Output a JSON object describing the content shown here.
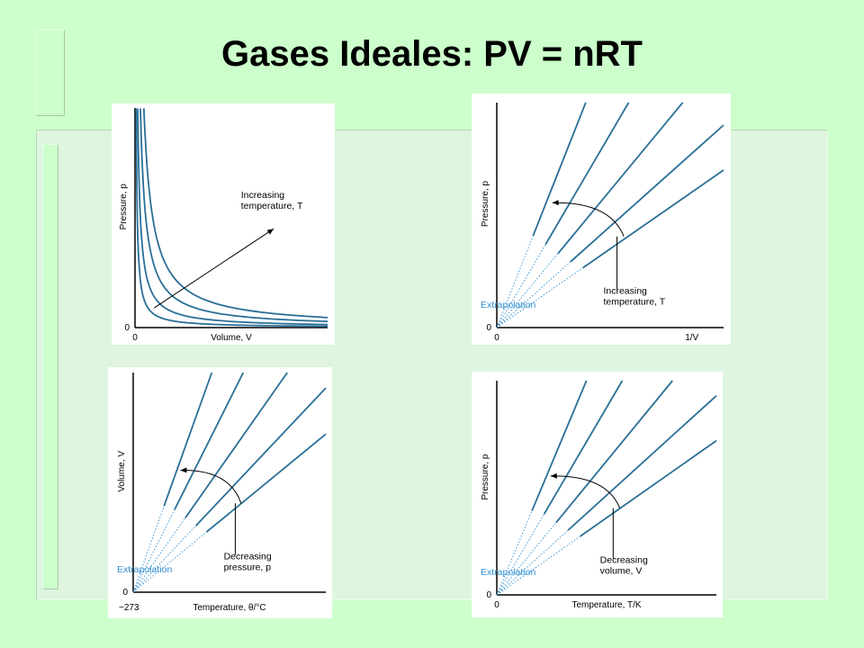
{
  "title": "Gases Ideales: PV = nRT",
  "colors": {
    "background": "#ccffcc",
    "line": "#2a6f97",
    "extrapolation": "#2f8fd0",
    "text": "#000000"
  },
  "chart_data": [
    {
      "type": "line",
      "xlabel": "Volume, V",
      "ylabel": "Pressure, p",
      "x_tick_labels": [
        "0"
      ],
      "y_tick_labels": [
        "0"
      ],
      "annotation": [
        "Increasing",
        "temperature, T"
      ],
      "series": [
        {
          "curve": "isotherm",
          "k": 0.6
        },
        {
          "curve": "isotherm",
          "k": 1.4
        },
        {
          "curve": "isotherm",
          "k": 2.8
        },
        {
          "curve": "isotherm",
          "k": 4.6
        }
      ],
      "xlim": [
        0,
        10
      ],
      "ylim": [
        0,
        10
      ]
    },
    {
      "type": "line",
      "xlabel": "1/V",
      "ylabel": "Pressure, p",
      "x_tick_labels": [
        "0"
      ],
      "y_tick_labels": [
        "0"
      ],
      "annotation": [
        "Increasing",
        "temperature, T"
      ],
      "extrapolation_label": "Extrapolation",
      "series": [
        {
          "curve": "linear",
          "slope": 2.55
        },
        {
          "curve": "linear",
          "slope": 1.72
        },
        {
          "curve": "linear",
          "slope": 1.22
        },
        {
          "curve": "linear",
          "slope": 0.9
        },
        {
          "curve": "linear",
          "slope": 0.7
        }
      ],
      "xlim": [
        0,
        10
      ],
      "ylim": [
        0,
        10
      ]
    },
    {
      "type": "line",
      "xlabel": "Temperature, θ/°C",
      "ylabel": "Volume, V",
      "x_tick_labels": [
        "−273"
      ],
      "y_tick_labels": [
        "0"
      ],
      "annotation": [
        "Decreasing",
        "pressure, p"
      ],
      "extrapolation_label": "Extrapolation",
      "series": [
        {
          "curve": "linear",
          "slope": 2.45
        },
        {
          "curve": "linear",
          "slope": 1.75
        },
        {
          "curve": "linear",
          "slope": 1.25
        },
        {
          "curve": "linear",
          "slope": 0.93
        },
        {
          "curve": "linear",
          "slope": 0.72
        }
      ],
      "xlim": [
        0,
        10
      ],
      "ylim": [
        0,
        10
      ]
    },
    {
      "type": "line",
      "xlabel": "Temperature, T/K",
      "ylabel": "Pressure, p",
      "x_tick_labels": [
        "0"
      ],
      "y_tick_labels": [
        "0"
      ],
      "annotation": [
        "Decreasing",
        "volume, V"
      ],
      "extrapolation_label": "Extrapolation",
      "series": [
        {
          "curve": "linear",
          "slope": 2.45
        },
        {
          "curve": "linear",
          "slope": 1.75
        },
        {
          "curve": "linear",
          "slope": 1.25
        },
        {
          "curve": "linear",
          "slope": 0.93
        },
        {
          "curve": "linear",
          "slope": 0.72
        }
      ],
      "xlim": [
        0,
        10
      ],
      "ylim": [
        0,
        10
      ]
    }
  ]
}
